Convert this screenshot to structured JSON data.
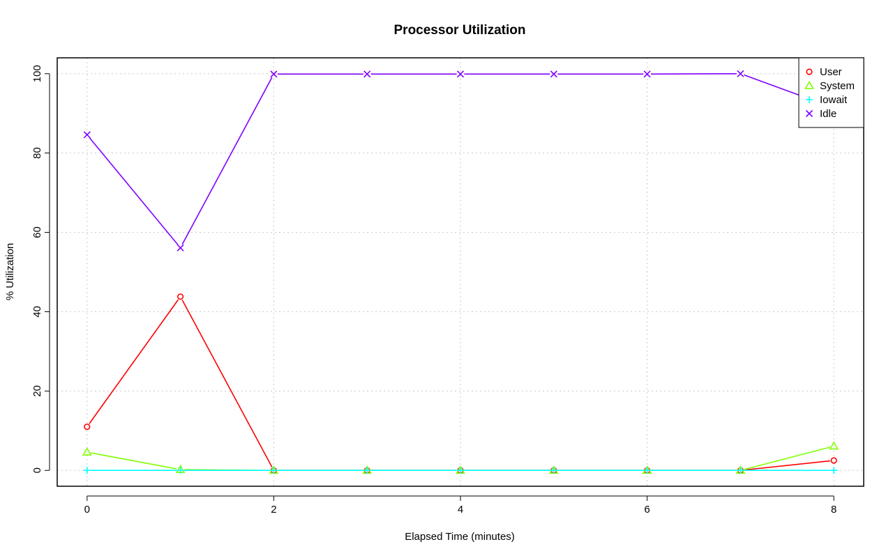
{
  "chart_data": {
    "type": "line",
    "title": "Processor Utilization",
    "xlabel": "Elapsed Time (minutes)",
    "ylabel": "% Utilization",
    "xlim": [
      -0.32,
      8.32
    ],
    "ylim": [
      -4,
      104
    ],
    "x_ticks": [
      0,
      2,
      4,
      6,
      8
    ],
    "y_ticks": [
      0,
      20,
      40,
      60,
      80,
      100
    ],
    "grid": true,
    "legend_position": "top-right",
    "x": [
      0,
      1,
      2,
      3,
      4,
      5,
      6,
      7,
      8
    ],
    "series": [
      {
        "name": "User",
        "color": "#ff0000",
        "marker": "circle",
        "values": [
          11,
          43.8,
          0,
          0,
          0,
          0,
          0,
          0,
          2.5
        ]
      },
      {
        "name": "System",
        "color": "#80ff00",
        "marker": "triangle",
        "values": [
          4.6,
          0.2,
          0,
          0,
          0,
          0,
          0,
          0,
          6.1
        ]
      },
      {
        "name": "Iowait",
        "color": "#00ffff",
        "marker": "plus",
        "values": [
          0,
          0,
          0,
          0,
          0,
          0,
          0,
          0,
          0
        ]
      },
      {
        "name": "Idle",
        "color": "#8000ff",
        "marker": "x",
        "values": [
          84.6,
          56.1,
          99.9,
          99.9,
          99.9,
          99.9,
          99.9,
          100,
          91.4
        ]
      }
    ]
  }
}
